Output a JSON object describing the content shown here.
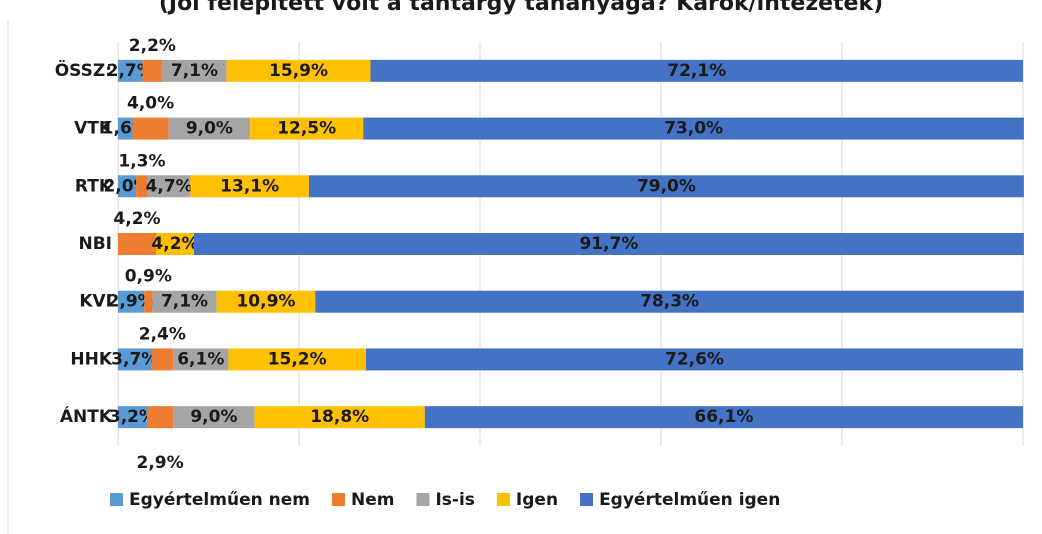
{
  "chart_data": {
    "type": "stacked_barh",
    "title": "(Jól felépített volt a tantárgy tananyaga? Karok/intézetek)",
    "categories": [
      "ÖSSZ:",
      "VTK",
      "RTK",
      "NBI",
      "KVI",
      "HHK",
      "ÁNTK"
    ],
    "series": [
      {
        "name": "Egyértelműen nem",
        "color": "#5b9bd5",
        "values": [
          2.7,
          1.6,
          2.0,
          null,
          2.9,
          3.7,
          3.2
        ],
        "value_labels": [
          "2,7%",
          "1,6%",
          "2,0%",
          null,
          "2,9%",
          "3,7%",
          "3,2%"
        ]
      },
      {
        "name": "Nem",
        "color": "#ed7d31",
        "values": [
          2.2,
          4.0,
          1.3,
          4.2,
          0.9,
          2.4,
          2.9
        ],
        "value_labels": [
          "2,2%",
          "4,0%",
          "1,3%",
          "4,2%",
          "0,9%",
          "2,4%",
          "2,9%"
        ]
      },
      {
        "name": "Is-is",
        "color": "#a5a5a5",
        "values": [
          7.1,
          9.0,
          4.7,
          null,
          7.1,
          6.1,
          9.0
        ],
        "value_labels": [
          "7,1%",
          "9,0%",
          "4,7%",
          null,
          "7,1%",
          "6,1%",
          "9,0%"
        ]
      },
      {
        "name": "Igen",
        "color": "#ffc000",
        "values": [
          15.9,
          12.5,
          13.1,
          4.2,
          10.9,
          15.2,
          18.8
        ],
        "value_labels": [
          "15,9%",
          "12,5%",
          "13,1%",
          "4,2%",
          "10,9%",
          "15,2%",
          "18,8%"
        ]
      },
      {
        "name": "Egyértelműen igen",
        "color": "#4472c4",
        "values": [
          72.1,
          73.0,
          79.0,
          91.7,
          78.3,
          72.6,
          66.1
        ],
        "value_labels": [
          "72,1%",
          "73,0%",
          "79,0%",
          "91,7%",
          "78,3%",
          "72,6%",
          "66,1%"
        ]
      }
    ],
    "xlim": [
      0,
      100
    ],
    "xticks": [
      0,
      20,
      40,
      60,
      80,
      100
    ],
    "grid": true,
    "legend": "bottom"
  }
}
